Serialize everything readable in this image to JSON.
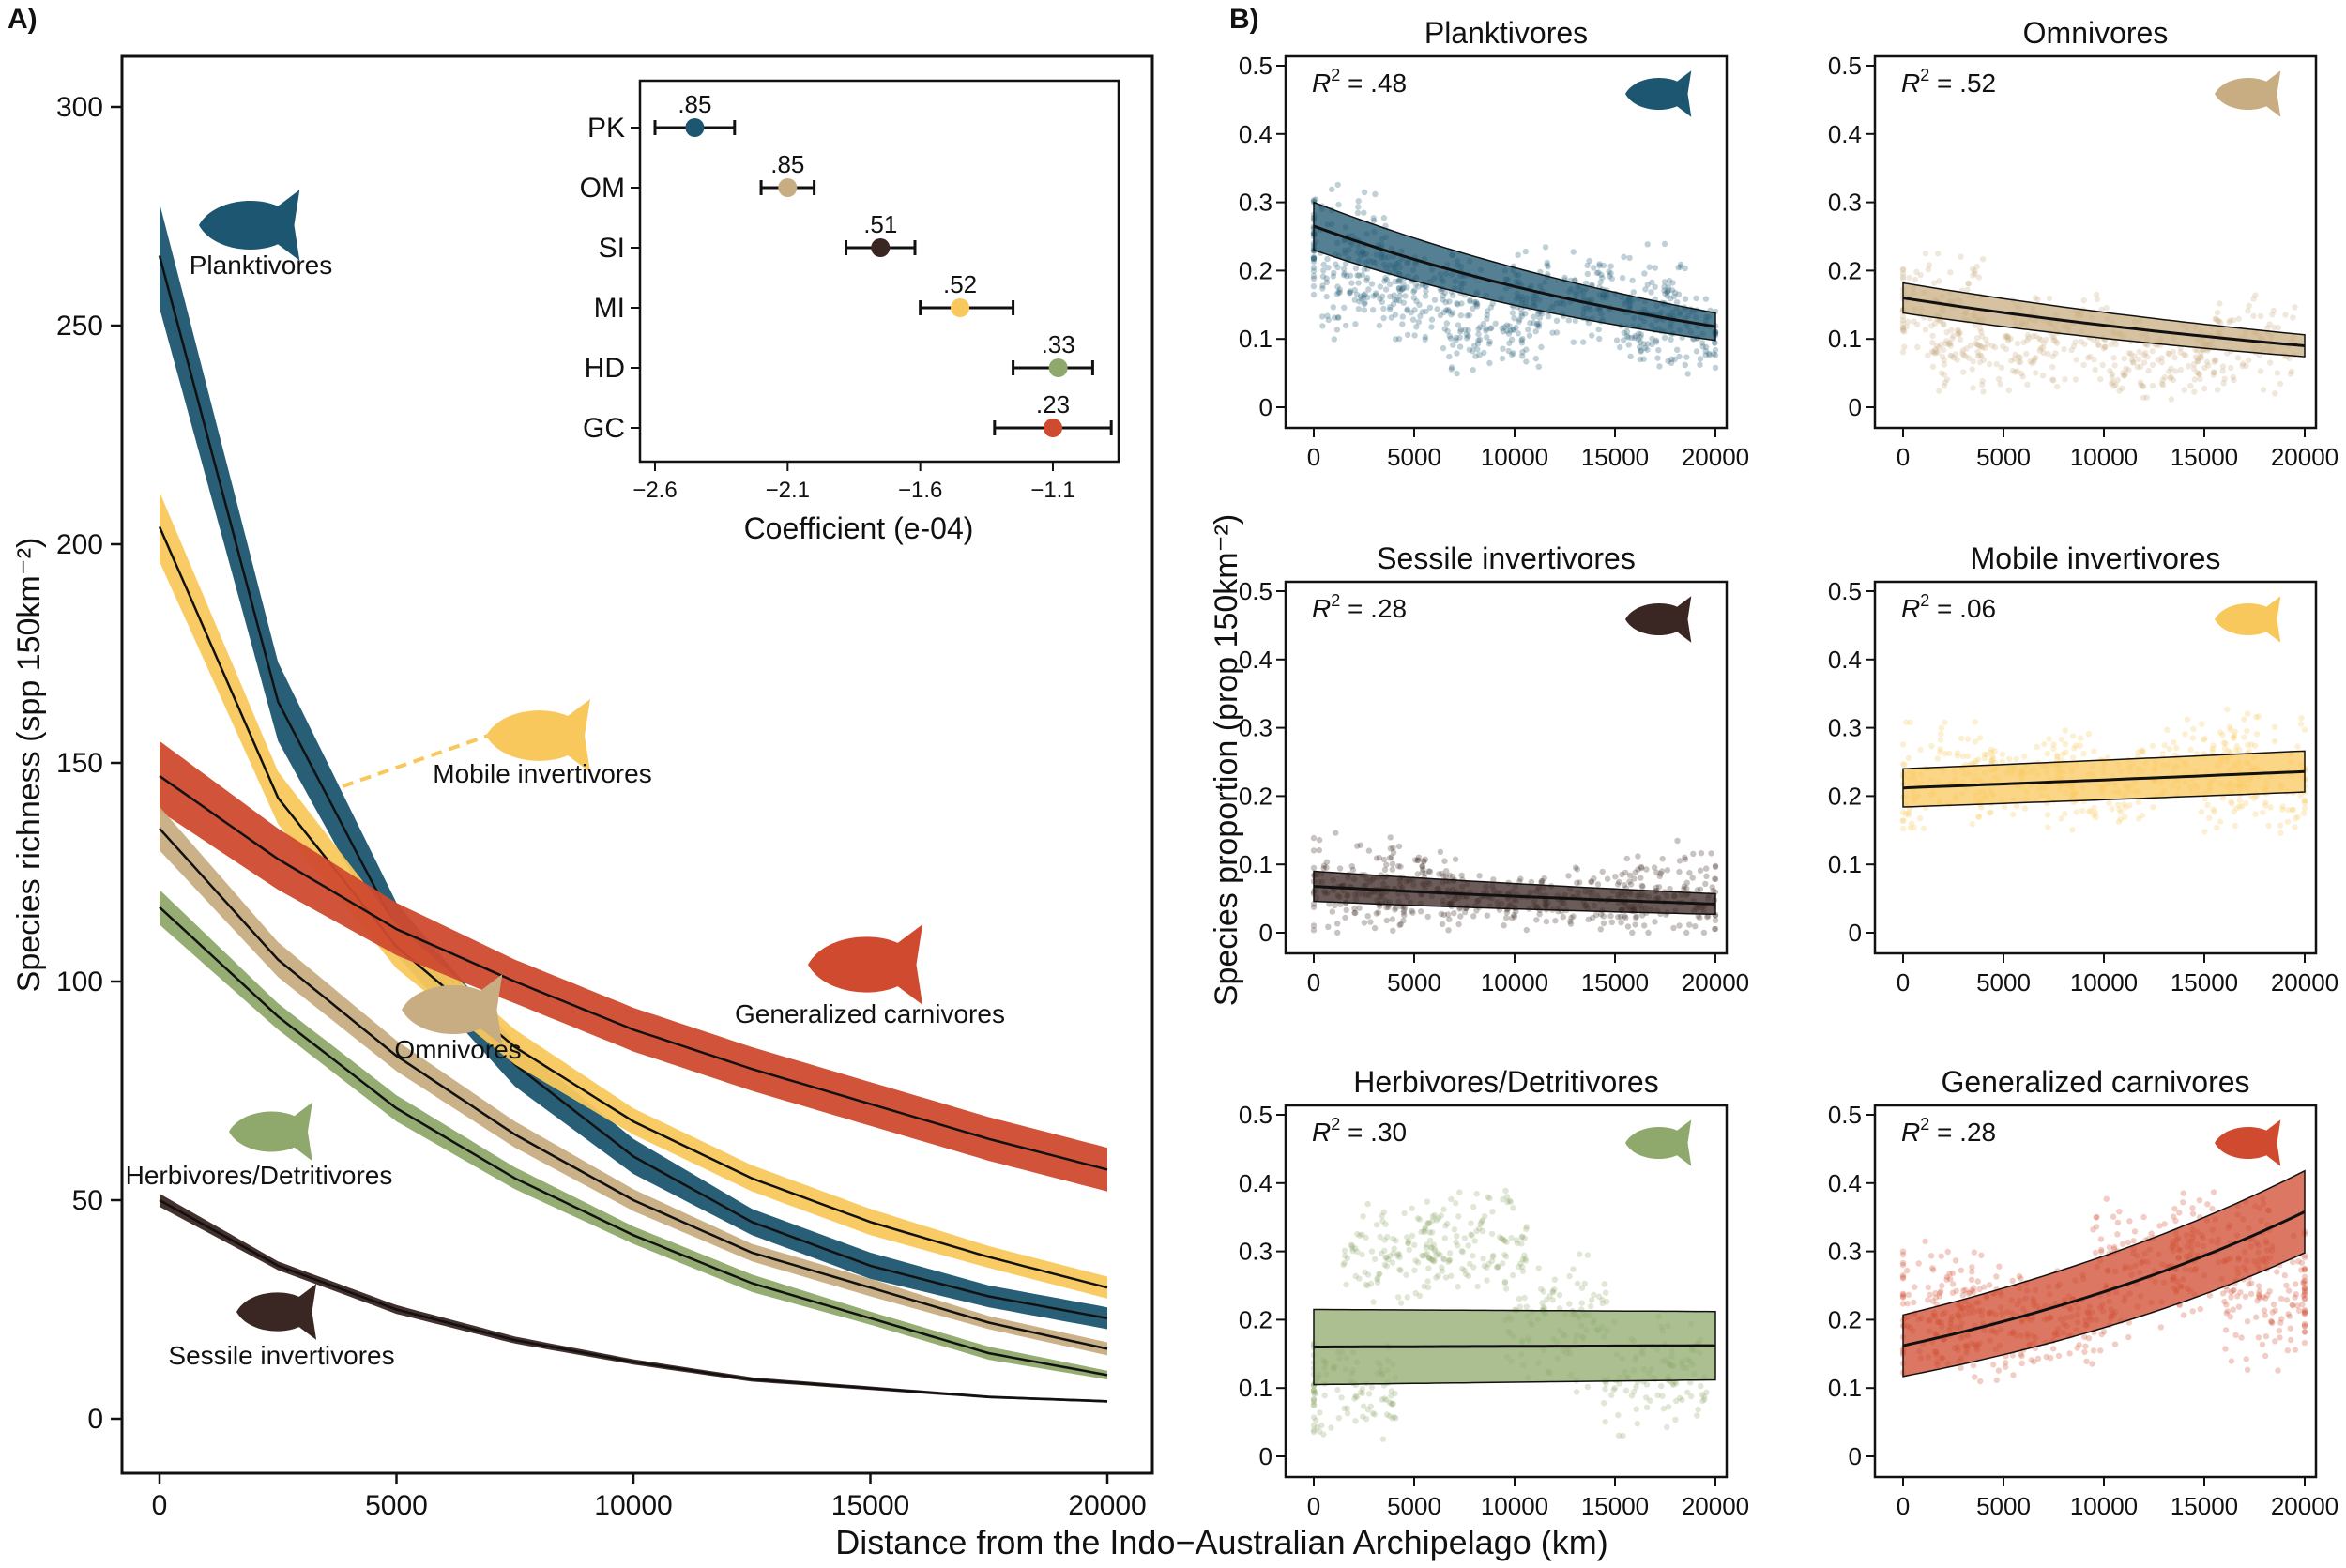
{
  "panel_labels": {
    "a": "A)",
    "b": "B)"
  },
  "x_axis_label": "Distance from the Indo−Australian Archipelago (km)",
  "colors": {
    "planktivores": "#1c5670",
    "omnivores": "#c8ad82",
    "sessile_invertivores": "#3a2622",
    "mobile_invertivores": "#f9c85d",
    "herbivores_detritivores": "#8fa96c",
    "generalized_carnivores": "#cf4a2e"
  },
  "icons": [
    "planktivore-fish-icon",
    "omnivore-fish-icon",
    "sessile-invertivore-fish-icon",
    "mobile-invertivore-fish-icon",
    "herbivore-fish-icon",
    "carnivore-fish-icon"
  ],
  "chart_data": [
    {
      "type": "line",
      "panel": "A",
      "ylabel": "Species richness (spp 150km⁻²)",
      "xlim": [
        0,
        20000
      ],
      "ylim": [
        0,
        300
      ],
      "xticks": [
        0,
        5000,
        10000,
        15000,
        20000
      ],
      "yticks": [
        0,
        50,
        100,
        150,
        200,
        250,
        300
      ],
      "grid": false,
      "series": [
        {
          "name": "Planktivores",
          "key": "planktivores",
          "x": [
            0,
            2500,
            5000,
            7500,
            10000,
            12500,
            15000,
            17500,
            20000
          ],
          "y": [
            266,
            164,
            112,
            81,
            60,
            45,
            35,
            28,
            23
          ],
          "band_half": [
            12,
            9,
            6,
            5,
            4,
            3,
            3,
            2.5,
            2.5
          ]
        },
        {
          "name": "Mobile invertivores",
          "key": "mobile_invertivores",
          "x": [
            0,
            2500,
            5000,
            7500,
            10000,
            12500,
            15000,
            17500,
            20000
          ],
          "y": [
            204,
            142,
            108,
            85,
            68,
            55,
            45,
            37,
            30
          ],
          "band_half": [
            8,
            6,
            5,
            4,
            3,
            3,
            3,
            2.5,
            2.5
          ]
        },
        {
          "name": "Generalized carnivores",
          "key": "generalized_carnivores",
          "x": [
            0,
            2500,
            5000,
            7500,
            10000,
            12500,
            15000,
            17500,
            20000
          ],
          "y": [
            147,
            128,
            112,
            100,
            89,
            80,
            72,
            64,
            57
          ],
          "band_half": [
            8,
            7,
            6,
            5,
            5,
            5,
            5,
            5,
            5
          ]
        },
        {
          "name": "Omnivores",
          "key": "omnivores",
          "x": [
            0,
            2500,
            5000,
            7500,
            10000,
            12500,
            15000,
            17500,
            20000
          ],
          "y": [
            135,
            105,
            83,
            65,
            50,
            38,
            30,
            22,
            16
          ],
          "band_half": [
            5,
            4,
            3.5,
            3,
            2.5,
            2,
            2,
            1.5,
            1.5
          ]
        },
        {
          "name": "Herbivores/Detritivores",
          "key": "herbivores_detritivores",
          "x": [
            0,
            2500,
            5000,
            7500,
            10000,
            12500,
            15000,
            17500,
            20000
          ],
          "y": [
            117,
            92,
            71,
            55,
            42,
            31,
            23,
            15,
            10
          ],
          "band_half": [
            4,
            3,
            3,
            2.5,
            2,
            2,
            1.5,
            1.5,
            1
          ]
        },
        {
          "name": "Sessile invertivores",
          "key": "sessile_invertivores",
          "x": [
            0,
            2500,
            5000,
            7500,
            10000,
            12500,
            15000,
            17500,
            20000
          ],
          "y": [
            50,
            35,
            25,
            18,
            13,
            9,
            7,
            5,
            4
          ],
          "band_half": [
            1.5,
            1,
            1,
            0.8,
            0.6,
            0.5,
            0.4,
            0.3,
            0.3
          ]
        }
      ]
    },
    {
      "type": "scatter",
      "panel": "A-inset",
      "xlabel": "Coefficient (e-04)",
      "xlim": [
        -2.6,
        -0.9
      ],
      "xticks": [
        -2.6,
        -2.1,
        -1.6,
        -1.1
      ],
      "xtick_labels": [
        "−2.6",
        "−2.1",
        "−1.6",
        "−1.1"
      ],
      "categories": [
        "PK",
        "OM",
        "SI",
        "MI",
        "HD",
        "GC"
      ],
      "keys": [
        "planktivores",
        "omnivores",
        "sessile_invertivores",
        "mobile_invertivores",
        "herbivores_detritivores",
        "generalized_carnivores"
      ],
      "values": [
        -2.45,
        -2.1,
        -1.75,
        -1.45,
        -1.08,
        -1.1
      ],
      "ci_low": [
        -2.6,
        -2.2,
        -1.88,
        -1.6,
        -1.25,
        -1.32
      ],
      "ci_high": [
        -2.3,
        -2.0,
        -1.62,
        -1.25,
        -0.95,
        -0.88
      ],
      "labels": [
        ".85",
        ".85",
        ".51",
        ".52",
        ".33",
        ".23"
      ]
    },
    {
      "type": "scatter",
      "panel": "B",
      "ylabel": "Species proportion (prop 150km⁻²)",
      "xlim": [
        0,
        20000
      ],
      "ylim": [
        0,
        0.5
      ],
      "xticks": [
        0,
        5000,
        10000,
        15000,
        20000
      ],
      "yticks": [
        0,
        0.1,
        0.2,
        0.3,
        0.4,
        0.5
      ],
      "ytick_labels": [
        "0",
        "0.1",
        "0.2",
        "0.3",
        "0.4",
        "0.5"
      ],
      "panels": [
        {
          "title": "Planktivores",
          "key": "planktivores",
          "r2_value": ".48",
          "fit_x": [
            0,
            20000
          ],
          "fit": [
            0.265,
            0.118
          ],
          "band_half": [
            0.035,
            0.02
          ],
          "curve": "exp",
          "cloud": [
            [
              1000,
              0.24,
              0.06
            ],
            [
              3000,
              0.17,
              0.05
            ],
            [
              6000,
              0.16,
              0.05
            ],
            [
              9000,
              0.11,
              0.04
            ],
            [
              12000,
              0.16,
              0.05
            ],
            [
              16000,
              0.16,
              0.05
            ],
            [
              18000,
              0.11,
              0.04
            ]
          ]
        },
        {
          "title": "Omnivores",
          "key": "omnivores",
          "r2_value": ".52",
          "fit_x": [
            0,
            20000
          ],
          "fit": [
            0.16,
            0.09
          ],
          "band_half": [
            0.022,
            0.016
          ],
          "curve": "exp",
          "cloud": [
            [
              1500,
              0.15,
              0.06
            ],
            [
              4000,
              0.08,
              0.04
            ],
            [
              8000,
              0.1,
              0.05
            ],
            [
              13000,
              0.07,
              0.04
            ],
            [
              17000,
              0.09,
              0.05
            ]
          ]
        },
        {
          "title": "Sessile invertivores",
          "key": "sessile_invertivores",
          "r2_value": ".28",
          "fit_x": [
            0,
            20000
          ],
          "fit": [
            0.068,
            0.042
          ],
          "band_half": [
            0.022,
            0.015
          ],
          "curve": "exp",
          "cloud": [
            [
              2000,
              0.07,
              0.05
            ],
            [
              5000,
              0.07,
              0.04
            ],
            [
              9000,
              0.05,
              0.03
            ],
            [
              14000,
              0.05,
              0.03
            ],
            [
              18000,
              0.06,
              0.05
            ]
          ]
        },
        {
          "title": "Mobile invertivores",
          "key": "mobile_invertivores",
          "r2_value": ".06",
          "fit_x": [
            0,
            20000
          ],
          "fit": [
            0.212,
            0.236
          ],
          "band_half": [
            0.028,
            0.03
          ],
          "curve": "exp",
          "cloud": [
            [
              2000,
              0.22,
              0.06
            ],
            [
              6000,
              0.23,
              0.05
            ],
            [
              10000,
              0.22,
              0.05
            ],
            [
              15000,
              0.24,
              0.06
            ],
            [
              18000,
              0.23,
              0.06
            ]
          ]
        },
        {
          "title": "Herbivores/Detritivores",
          "key": "herbivores_detritivores",
          "r2_value": ".30",
          "fit_x": [
            0,
            20000
          ],
          "fit": [
            0.16,
            0.162
          ],
          "band_half": [
            0.055,
            0.05
          ],
          "curve": "exp",
          "cloud": [
            [
              1500,
              0.1,
              0.05
            ],
            [
              4000,
              0.3,
              0.05
            ],
            [
              8000,
              0.32,
              0.05
            ],
            [
              12000,
              0.2,
              0.07
            ],
            [
              17000,
              0.12,
              0.06
            ]
          ]
        },
        {
          "title": "Generalized carnivores",
          "key": "generalized_carnivores",
          "r2_value": ".28",
          "fit_x": [
            0,
            20000
          ],
          "fit": [
            0.162,
            0.358
          ],
          "band_half": [
            0.045,
            0.06
          ],
          "curve": "exp",
          "cloud": [
            [
              1500,
              0.22,
              0.07
            ],
            [
              4000,
              0.2,
              0.06
            ],
            [
              8000,
              0.2,
              0.05
            ],
            [
              12000,
              0.28,
              0.07
            ],
            [
              16000,
              0.3,
              0.07
            ],
            [
              18500,
              0.23,
              0.07
            ]
          ]
        }
      ]
    }
  ],
  "panel_a_labels": [
    {
      "key": "planktivores",
      "text": "Planktivores"
    },
    {
      "key": "mobile_invertivores",
      "text": "Mobile invertivores"
    },
    {
      "key": "generalized_carnivores",
      "text": "Generalized carnivores"
    },
    {
      "key": "omnivores",
      "text": "Omnivores"
    },
    {
      "key": "herbivores_detritivores",
      "text": "Herbivores/Detritivores"
    },
    {
      "key": "sessile_invertivores",
      "text": "Sessile invertivores"
    }
  ]
}
